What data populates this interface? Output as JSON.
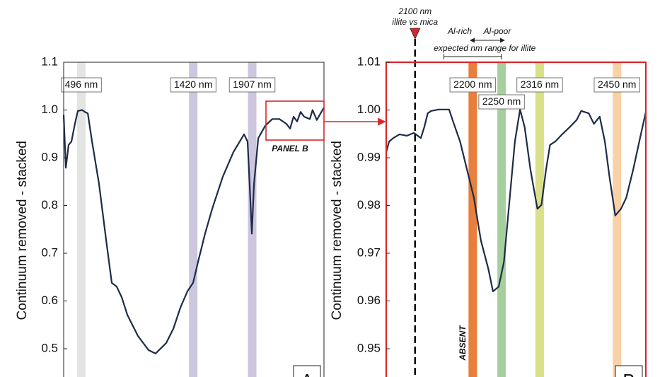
{
  "chart_data": [
    {
      "type": "line",
      "y_title": "Continuum removed - stacked",
      "panel_letter": "A",
      "zoom_label": "PANEL B",
      "xlim": [
        350,
        2500
      ],
      "ylim": [
        0.44,
        1.1
      ],
      "yticks": [
        0.5,
        0.6,
        0.7,
        0.8,
        0.9,
        {
          "value": 1,
          "label": "1.0"
        },
        1.1
      ],
      "frame_color": "#222222",
      "color": "#1e2b48",
      "bands": [
        {
          "center": 496,
          "label": "496 nm",
          "color": "#e2e5e2"
        },
        {
          "center": 1420,
          "label": "1420 nm",
          "color": "#cdc6df"
        },
        {
          "center": 1907,
          "label": "1907 nm",
          "color": "#cdc6df"
        }
      ],
      "x": [
        350,
        368,
        391,
        414,
        443,
        467,
        502,
        525,
        549,
        584,
        642,
        701,
        747,
        788,
        829,
        876,
        963,
        1051,
        1109,
        1197,
        1256,
        1314,
        1372,
        1419,
        1460,
        1518,
        1577,
        1664,
        1752,
        1840,
        1869,
        1886,
        1904,
        1922,
        1957,
        2015,
        2073,
        2132,
        2190,
        2220,
        2249,
        2278,
        2307,
        2336,
        2383,
        2406,
        2441,
        2465,
        2500
      ],
      "values": [
        0.99,
        0.879,
        0.927,
        0.934,
        0.971,
        0.998,
        1.0,
        0.996,
        0.993,
        0.934,
        0.845,
        0.727,
        0.638,
        0.63,
        0.608,
        0.571,
        0.527,
        0.497,
        0.49,
        0.512,
        0.542,
        0.586,
        0.62,
        0.638,
        0.682,
        0.741,
        0.793,
        0.86,
        0.912,
        0.949,
        0.934,
        0.845,
        0.741,
        0.845,
        0.941,
        0.967,
        0.981,
        0.981,
        0.971,
        0.961,
        0.986,
        0.976,
        0.996,
        0.986,
        0.981,
        1.0,
        0.979,
        0.99,
        1.005
      ]
    },
    {
      "type": "line",
      "y_title": "Continuum removed - stacked",
      "panel_letter": "B",
      "absent_label": "ABSENT",
      "xlim": [
        2050,
        2500
      ],
      "ylim": [
        0.944,
        1.01
      ],
      "yticks": [
        0.95,
        0.96,
        0.97,
        0.98,
        0.99,
        {
          "value": 1,
          "label": "1.00"
        },
        1.01
      ],
      "frame_color": "#d9262b",
      "color": "#1e2b48",
      "marker_line": {
        "x": 2100,
        "label": "2100 nm",
        "sublabel": "illite vs mica"
      },
      "illite_range": {
        "x": [
          2150,
          2250
        ],
        "label": "expected nm range for illite",
        "left_label": "Al-rich",
        "right_label": "Al-poor"
      },
      "bands": [
        {
          "center": 2200,
          "label": "2200 nm",
          "color": "#e87f3c"
        },
        {
          "center": 2250,
          "label": "2250 nm",
          "color": "#a6cf9e"
        },
        {
          "center": 2316,
          "label": "2316 nm",
          "color": "#d9e088"
        },
        {
          "center": 2450,
          "label": "2450 nm",
          "color": "#f8d1a6"
        }
      ],
      "x": [
        2050,
        2055,
        2062,
        2073,
        2086,
        2098,
        2110,
        2116,
        2122,
        2128,
        2141,
        2159,
        2165,
        2178,
        2190,
        2202,
        2214,
        2227,
        2235,
        2245,
        2254,
        2263,
        2273,
        2282,
        2290,
        2300,
        2312,
        2319,
        2327,
        2334,
        2343,
        2355,
        2368,
        2380,
        2388,
        2401,
        2410,
        2420,
        2429,
        2437,
        2447,
        2457,
        2466,
        2478,
        2490,
        2500
      ],
      "values": [
        0.9912,
        0.9934,
        0.9941,
        0.9949,
        0.9946,
        0.9952,
        0.9941,
        0.9964,
        0.9993,
        0.9998,
        1.0001,
        1.0001,
        0.9979,
        0.9934,
        0.9875,
        0.9816,
        0.9727,
        0.9667,
        0.962,
        0.963,
        0.9682,
        0.9801,
        0.9934,
        1.0001,
        0.9964,
        0.9875,
        0.9793,
        0.9801,
        0.9875,
        0.9927,
        0.9934,
        0.9949,
        0.9964,
        0.9979,
        0.9998,
        0.9993,
        0.9971,
        0.9986,
        0.9934,
        0.986,
        0.9779,
        0.9793,
        0.9816,
        0.9875,
        0.9941,
        0.9996
      ]
    }
  ]
}
